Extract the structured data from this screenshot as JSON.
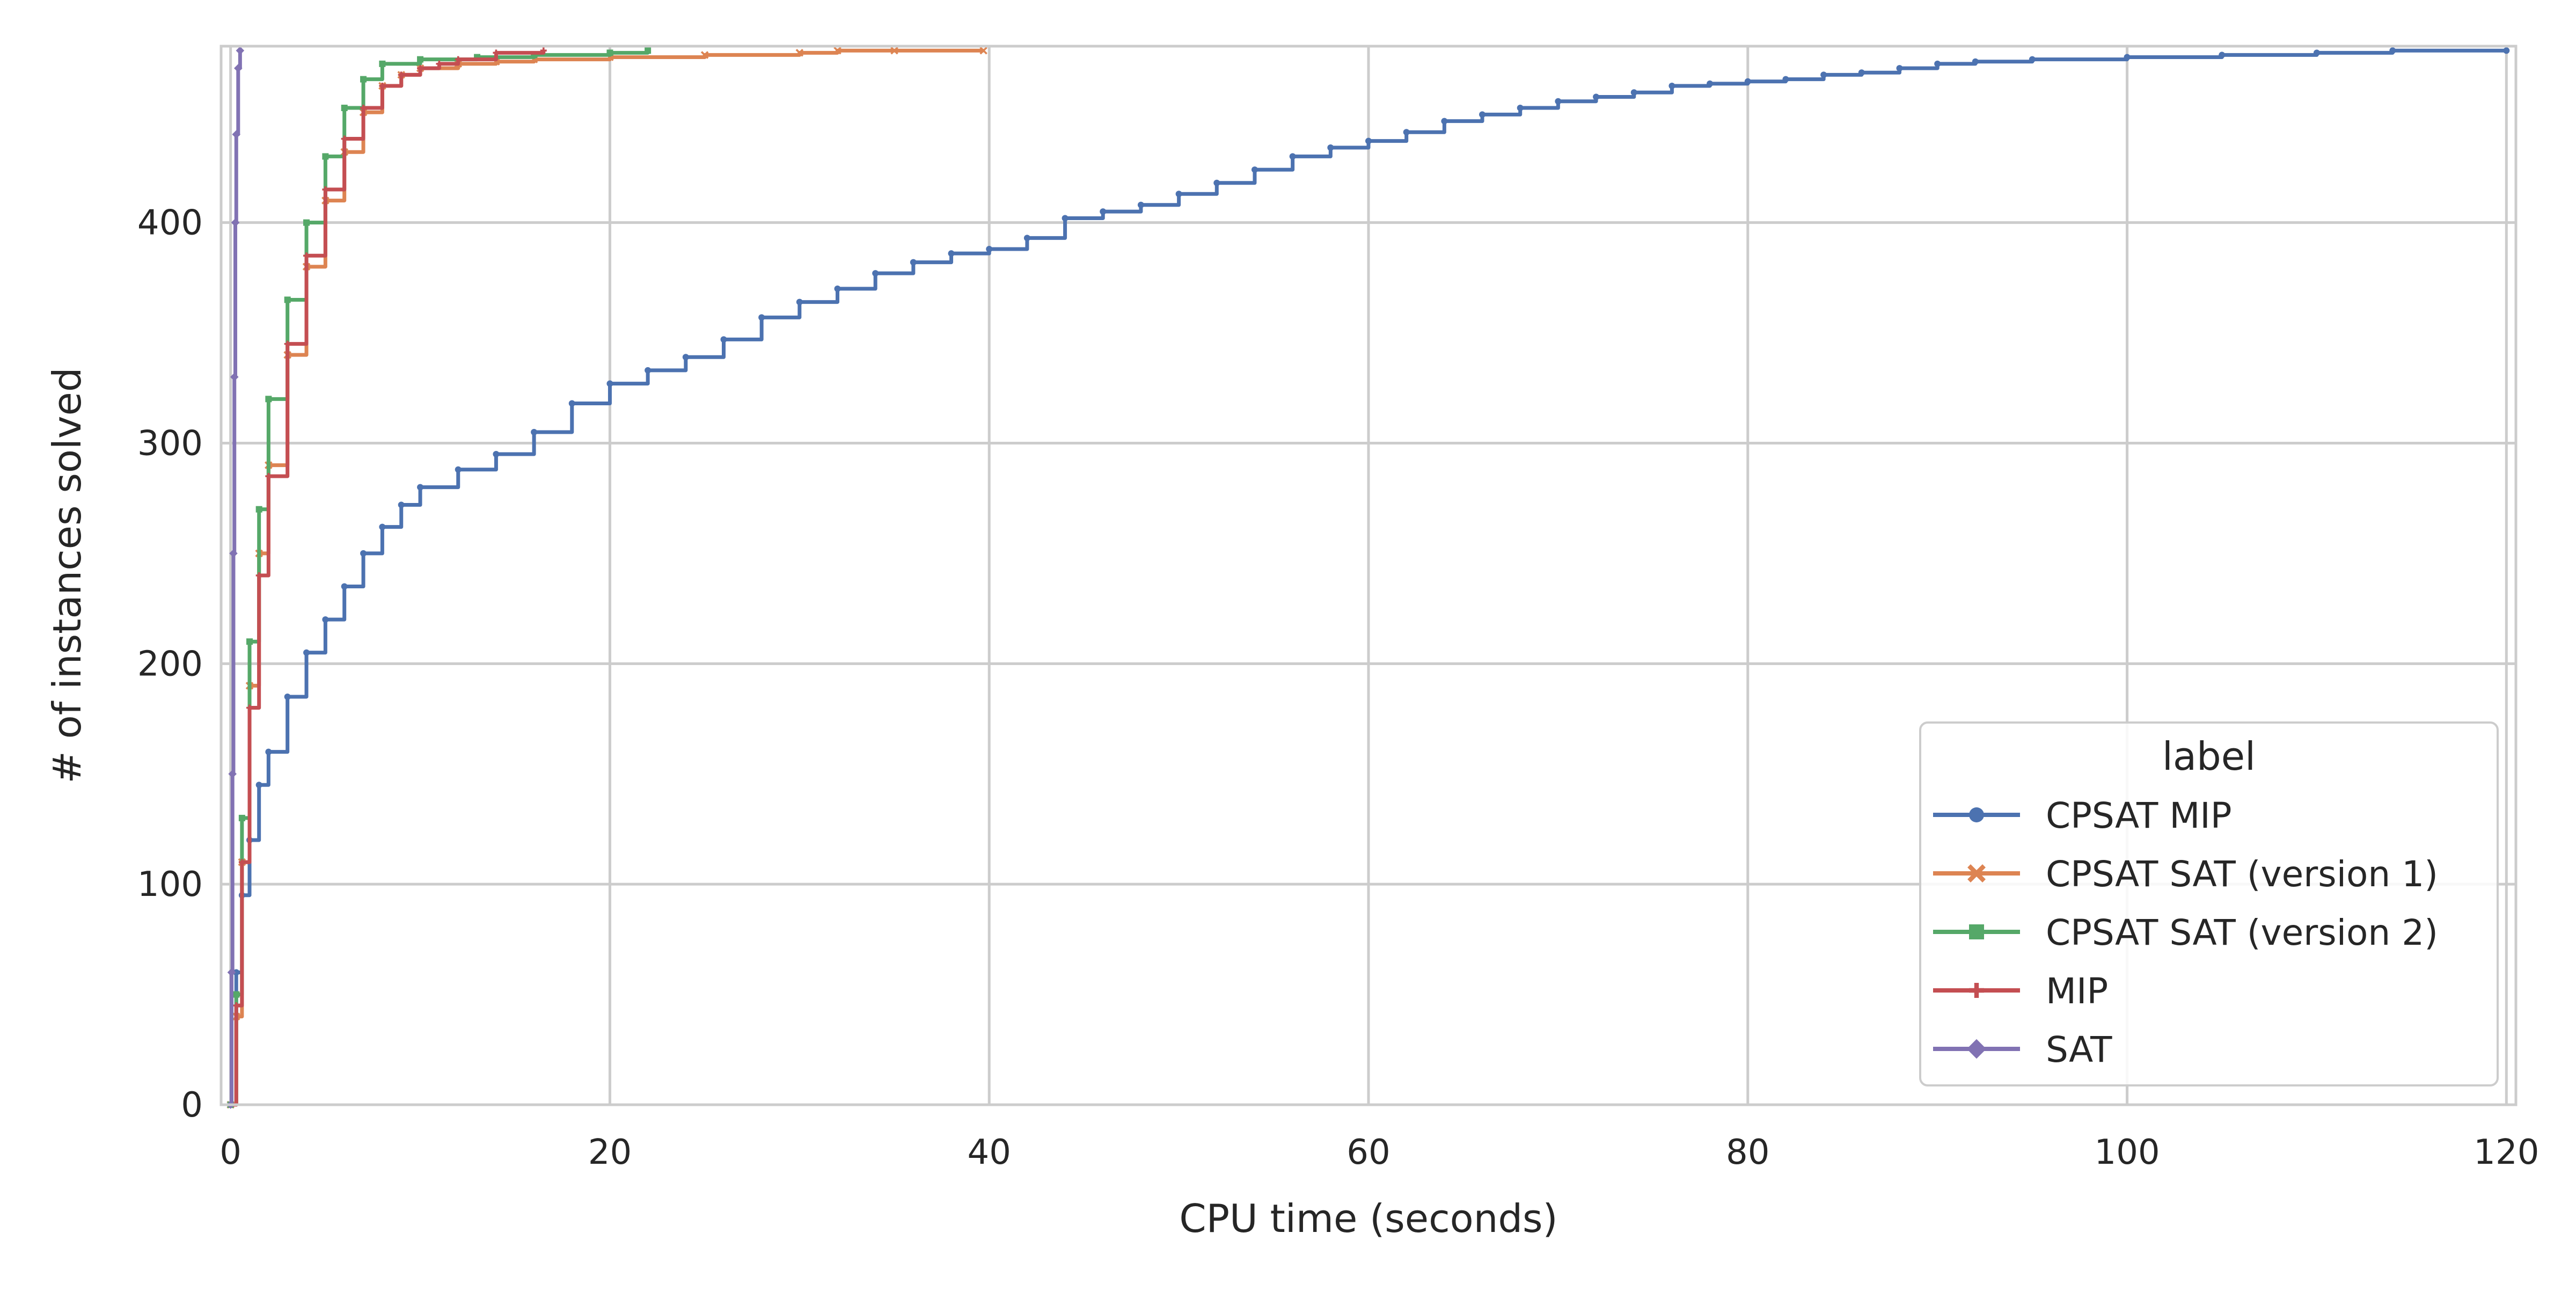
{
  "chart_data": {
    "type": "line",
    "title": "",
    "xlabel": "CPU time (seconds)",
    "ylabel": "# of instances solved",
    "xlim": [
      -0.5,
      120.5
    ],
    "ylim": [
      0,
      480
    ],
    "xticks": [
      0,
      20,
      40,
      60,
      80,
      100,
      120
    ],
    "xtick_labels": [
      "0",
      "20",
      "40",
      "60",
      "80",
      "100",
      "120"
    ],
    "yticks": [
      0,
      100,
      200,
      300,
      400
    ],
    "ytick_labels": [
      "0",
      "100",
      "200",
      "300",
      "400"
    ],
    "grid": true,
    "legend": {
      "title": "label",
      "placement": "lower-right"
    },
    "series": [
      {
        "name": "CPSAT MIP",
        "color": "#4c72b0",
        "marker": "circle",
        "x": [
          0.0,
          0.3,
          0.6,
          1.0,
          1.5,
          2.0,
          3.0,
          4.0,
          5.0,
          6.0,
          7.0,
          8.0,
          9.0,
          10.0,
          12.0,
          14.0,
          16.0,
          18.0,
          20.0,
          22.0,
          24.0,
          26.0,
          28.0,
          30.0,
          32.0,
          34.0,
          36.0,
          38.0,
          40.0,
          42.0,
          44.0,
          46.0,
          48.0,
          50.0,
          52.0,
          54.0,
          56.0,
          58.0,
          60.0,
          62.0,
          64.0,
          66.0,
          68.0,
          70.0,
          72.0,
          74.0,
          76.0,
          78.0,
          80.0,
          82.0,
          84.0,
          86.0,
          88.0,
          90.0,
          92.0,
          95.0,
          100.0,
          105.0,
          110.0,
          114.0,
          120.0
        ],
        "y": [
          0,
          60,
          95,
          120,
          145,
          160,
          185,
          205,
          220,
          235,
          250,
          262,
          272,
          280,
          288,
          295,
          305,
          318,
          327,
          333,
          339,
          347,
          357,
          364,
          370,
          377,
          382,
          386,
          388,
          393,
          402,
          405,
          408,
          413,
          418,
          424,
          430,
          434,
          437,
          441,
          446,
          449,
          452,
          455,
          457,
          459,
          462,
          463,
          464,
          465,
          467,
          468,
          470,
          472,
          473,
          474,
          475,
          476,
          477,
          478,
          478
        ]
      },
      {
        "name": "CPSAT SAT (version 1)",
        "color": "#dd8452",
        "marker": "x",
        "x": [
          0.0,
          0.3,
          0.6,
          1.0,
          1.5,
          2.0,
          3.0,
          4.0,
          5.0,
          6.0,
          7.0,
          8.0,
          9.0,
          10.0,
          12.0,
          14.0,
          16.0,
          20.0,
          25.0,
          30.0,
          32.0,
          35.0,
          39.7
        ],
        "y": [
          0,
          40,
          110,
          190,
          250,
          290,
          340,
          380,
          410,
          432,
          450,
          462,
          467,
          470,
          472,
          473,
          474,
          475,
          476,
          477,
          478,
          478,
          478
        ]
      },
      {
        "name": "CPSAT SAT (version 2)",
        "color": "#55a868",
        "marker": "square",
        "x": [
          0.0,
          0.3,
          0.6,
          1.0,
          1.5,
          2.0,
          3.0,
          4.0,
          5.0,
          6.0,
          7.0,
          8.0,
          10.0,
          13.0,
          16.0,
          20.0,
          22.0
        ],
        "y": [
          0,
          50,
          130,
          210,
          270,
          320,
          365,
          400,
          430,
          452,
          465,
          472,
          474,
          475,
          476,
          477,
          478
        ]
      },
      {
        "name": "MIP",
        "color": "#c44e52",
        "marker": "plus",
        "x": [
          0.0,
          0.3,
          0.6,
          1.0,
          1.5,
          2.0,
          3.0,
          4.0,
          5.0,
          6.0,
          7.0,
          8.0,
          9.0,
          10.0,
          11.0,
          12.0,
          14.0,
          16.5
        ],
        "y": [
          0,
          45,
          110,
          180,
          240,
          285,
          345,
          385,
          415,
          438,
          452,
          462,
          467,
          470,
          472,
          474,
          477,
          478
        ]
      },
      {
        "name": "SAT",
        "color": "#8172b3",
        "marker": "diamond",
        "x": [
          0.0,
          0.05,
          0.1,
          0.15,
          0.2,
          0.25,
          0.3,
          0.4,
          0.5
        ],
        "y": [
          0,
          60,
          150,
          250,
          330,
          400,
          440,
          470,
          478
        ]
      }
    ]
  }
}
